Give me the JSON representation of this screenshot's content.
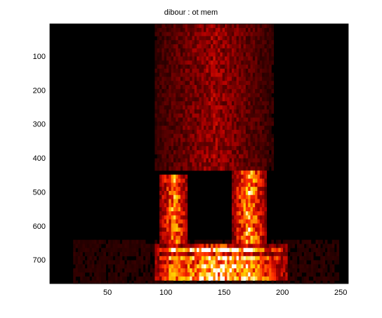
{
  "chart_data": {
    "type": "heatmap",
    "title": "dibour : ot mem",
    "xlabel": "",
    "ylabel": "",
    "xlim": [
      0.5,
      256.5
    ],
    "ylim": [
      770,
      5
    ],
    "y_reversed": true,
    "xticks": [
      50,
      100,
      150,
      200,
      250
    ],
    "yticks": [
      100,
      200,
      300,
      400,
      500,
      600,
      700
    ],
    "colormap": "hot",
    "colormap_stops": [
      "#000000",
      "#5a0000",
      "#b40000",
      "#ff2a00",
      "#ff8a00",
      "#ffd400",
      "#ffffff"
    ],
    "columns": 256,
    "rows": 770,
    "features": [
      {
        "name": "upper voiced region",
        "x": [
          95,
          188
        ],
        "y": [
          5,
          440
        ],
        "intensity": 0.35
      },
      {
        "name": "formant band left",
        "x": [
          100,
          115
        ],
        "y": [
          450,
          760
        ],
        "intensity": 0.85
      },
      {
        "name": "formant band right",
        "x": [
          162,
          182
        ],
        "y": [
          440,
          760
        ],
        "intensity": 0.9
      },
      {
        "name": "low frequency harmonics",
        "x": [
          95,
          200
        ],
        "y": [
          650,
          765
        ],
        "intensity": 1.0
      }
    ]
  }
}
